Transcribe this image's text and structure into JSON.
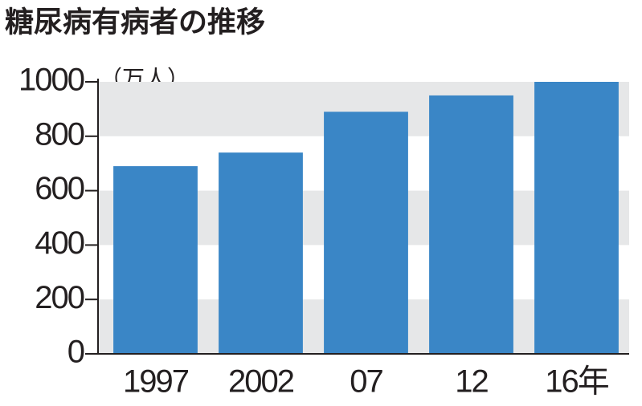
{
  "chart_data": {
    "type": "bar",
    "title": "糖尿病有病者の推移",
    "unit_label": "（万人）",
    "categories": [
      "1997",
      "2002",
      "07",
      "12",
      "16年"
    ],
    "values": [
      690,
      740,
      890,
      950,
      1000
    ],
    "color": "#3a86c6",
    "ylim": [
      0,
      1000
    ],
    "yticks": [
      0,
      200,
      400,
      600,
      800,
      1000
    ],
    "grid_bands": true,
    "band_color": "#e6e7e8"
  }
}
